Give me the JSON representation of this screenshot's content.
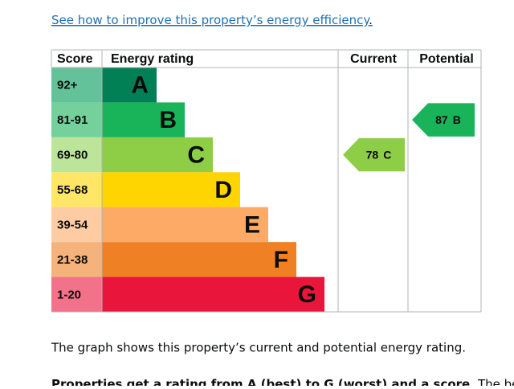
{
  "link": {
    "text": "See how to improve this property’s energy efficiency",
    "suffix": "."
  },
  "table": {
    "headers": [
      "Score",
      "Energy rating",
      "Current",
      "Potential"
    ],
    "bands": [
      {
        "score": "92+",
        "letter": "A"
      },
      {
        "score": "81-91",
        "letter": "B"
      },
      {
        "score": "69-80",
        "letter": "C"
      },
      {
        "score": "55-68",
        "letter": "D"
      },
      {
        "score": "39-54",
        "letter": "E"
      },
      {
        "score": "21-38",
        "letter": "F"
      },
      {
        "score": "1-20",
        "letter": "G"
      }
    ],
    "current": {
      "score": "78",
      "letter": "C"
    },
    "potential": {
      "score": "87",
      "letter": "B"
    }
  },
  "paragraphs": [
    "The graph shows this property’s current and potential energy rating.",
    "Properties get a rating from A (best) to G (worst) and a score.",
    "The better"
  ]
}
